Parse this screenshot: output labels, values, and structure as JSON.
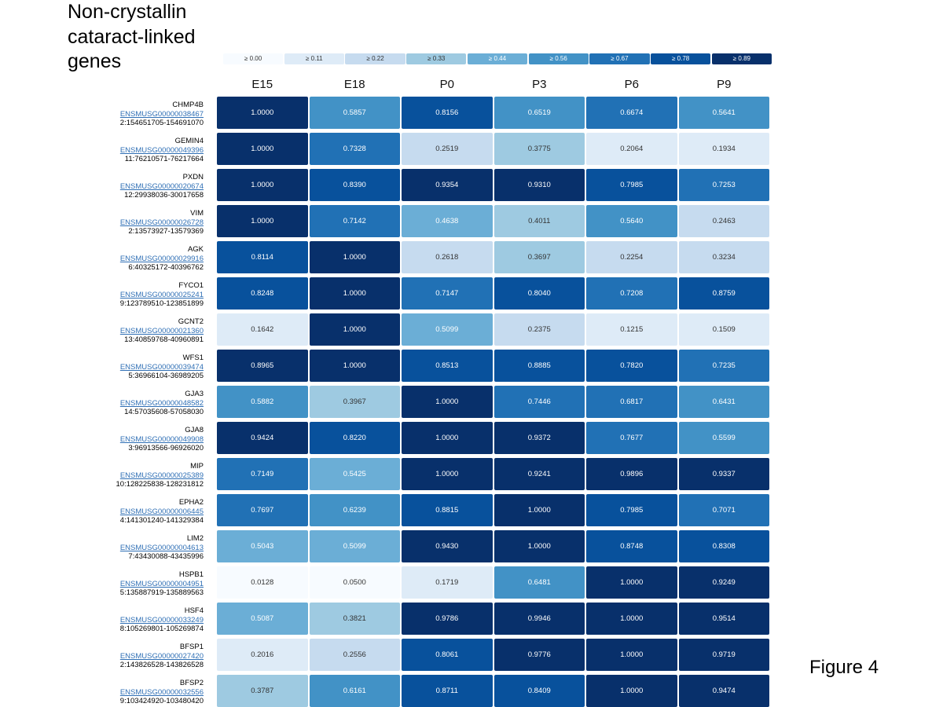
{
  "title_lines": [
    "Non-crystallin",
    "cataract-linked",
    "genes"
  ],
  "figure_label": "Figure 4",
  "legend": [
    {
      "label": "≥ 0.00",
      "color": "#f7fbff",
      "text": "#333333"
    },
    {
      "label": "≥ 0.11",
      "color": "#deebf7",
      "text": "#333333"
    },
    {
      "label": "≥ 0.22",
      "color": "#c6dbef",
      "text": "#333333"
    },
    {
      "label": "≥ 0.33",
      "color": "#9ecae1",
      "text": "#333333"
    },
    {
      "label": "≥ 0.44",
      "color": "#6baed6",
      "text": "#ffffff"
    },
    {
      "label": "≥ 0.56",
      "color": "#4292c6",
      "text": "#ffffff"
    },
    {
      "label": "≥ 0.67",
      "color": "#2171b5",
      "text": "#ffffff"
    },
    {
      "label": "≥ 0.78",
      "color": "#08519c",
      "text": "#ffffff"
    },
    {
      "label": "≥ 0.89",
      "color": "#08306b",
      "text": "#ffffff"
    }
  ],
  "chart_data": {
    "type": "heatmap",
    "columns": [
      "E15",
      "E18",
      "P0",
      "P3",
      "P6",
      "P9"
    ],
    "rows": [
      {
        "gene": "CHMP4B",
        "ensembl": "ENSMUSG00000038467",
        "locus": "2:154651705-154691070",
        "values": [
          "1.0000",
          "0.5857",
          "0.8156",
          "0.6519",
          "0.6674",
          "0.5641"
        ]
      },
      {
        "gene": "GEMIN4",
        "ensembl": "ENSMUSG00000049396",
        "locus": "11:76210571-76217664",
        "values": [
          "1.0000",
          "0.7328",
          "0.2519",
          "0.3775",
          "0.2064",
          "0.1934"
        ]
      },
      {
        "gene": "PXDN",
        "ensembl": "ENSMUSG00000020674",
        "locus": "12:29938036-30017658",
        "values": [
          "1.0000",
          "0.8390",
          "0.9354",
          "0.9310",
          "0.7985",
          "0.7253"
        ]
      },
      {
        "gene": "VIM",
        "ensembl": "ENSMUSG00000026728",
        "locus": "2:13573927-13579369",
        "values": [
          "1.0000",
          "0.7142",
          "0.4638",
          "0.4011",
          "0.5640",
          "0.2463"
        ]
      },
      {
        "gene": "AGK",
        "ensembl": "ENSMUSG00000029916",
        "locus": "6:40325172-40396762",
        "values": [
          "0.8114",
          "1.0000",
          "0.2618",
          "0.3697",
          "0.2254",
          "0.3234"
        ]
      },
      {
        "gene": "FYCO1",
        "ensembl": "ENSMUSG00000025241",
        "locus": "9:123789510-123851899",
        "values": [
          "0.8248",
          "1.0000",
          "0.7147",
          "0.8040",
          "0.7208",
          "0.8759"
        ]
      },
      {
        "gene": "GCNT2",
        "ensembl": "ENSMUSG00000021360",
        "locus": "13:40859768-40960891",
        "values": [
          "0.1642",
          "1.0000",
          "0.5099",
          "0.2375",
          "0.1215",
          "0.1509"
        ]
      },
      {
        "gene": "WFS1",
        "ensembl": "ENSMUSG00000039474",
        "locus": "5:36966104-36989205",
        "values": [
          "0.8965",
          "1.0000",
          "0.8513",
          "0.8885",
          "0.7820",
          "0.7235"
        ]
      },
      {
        "gene": "GJA3",
        "ensembl": "ENSMUSG00000048582",
        "locus": "14:57035608-57058030",
        "values": [
          "0.5882",
          "0.3967",
          "1.0000",
          "0.7446",
          "0.6817",
          "0.6431"
        ]
      },
      {
        "gene": "GJA8",
        "ensembl": "ENSMUSG00000049908",
        "locus": "3:96913566-96926020",
        "values": [
          "0.9424",
          "0.8220",
          "1.0000",
          "0.9372",
          "0.7677",
          "0.5599"
        ]
      },
      {
        "gene": "MIP",
        "ensembl": "ENSMUSG00000025389",
        "locus": "10:128225838-128231812",
        "values": [
          "0.7149",
          "0.5425",
          "1.0000",
          "0.9241",
          "0.9896",
          "0.9337"
        ]
      },
      {
        "gene": "EPHA2",
        "ensembl": "ENSMUSG00000006445",
        "locus": "4:141301240-141329384",
        "values": [
          "0.7697",
          "0.6239",
          "0.8815",
          "1.0000",
          "0.7985",
          "0.7071"
        ]
      },
      {
        "gene": "LIM2",
        "ensembl": "ENSMUSG00000004613",
        "locus": "7:43430088-43435996",
        "values": [
          "0.5043",
          "0.5099",
          "0.9430",
          "1.0000",
          "0.8748",
          "0.8308"
        ]
      },
      {
        "gene": "HSPB1",
        "ensembl": "ENSMUSG00000004951",
        "locus": "5:135887919-135889563",
        "values": [
          "0.0128",
          "0.0500",
          "0.1719",
          "0.6481",
          "1.0000",
          "0.9249"
        ]
      },
      {
        "gene": "HSF4",
        "ensembl": "ENSMUSG00000033249",
        "locus": "8:105269801-105269874",
        "values": [
          "0.5087",
          "0.3821",
          "0.9786",
          "0.9946",
          "1.0000",
          "0.9514"
        ]
      },
      {
        "gene": "BFSP1",
        "ensembl": "ENSMUSG00000027420",
        "locus": "2:143826528-143826528",
        "values": [
          "0.2016",
          "0.2556",
          "0.8061",
          "0.9776",
          "1.0000",
          "0.9719"
        ]
      },
      {
        "gene": "BFSP2",
        "ensembl": "ENSMUSG00000032556",
        "locus": "9:103424920-103480420",
        "values": [
          "0.3787",
          "0.6161",
          "0.8711",
          "0.8409",
          "1.0000",
          "0.9474"
        ]
      }
    ]
  }
}
